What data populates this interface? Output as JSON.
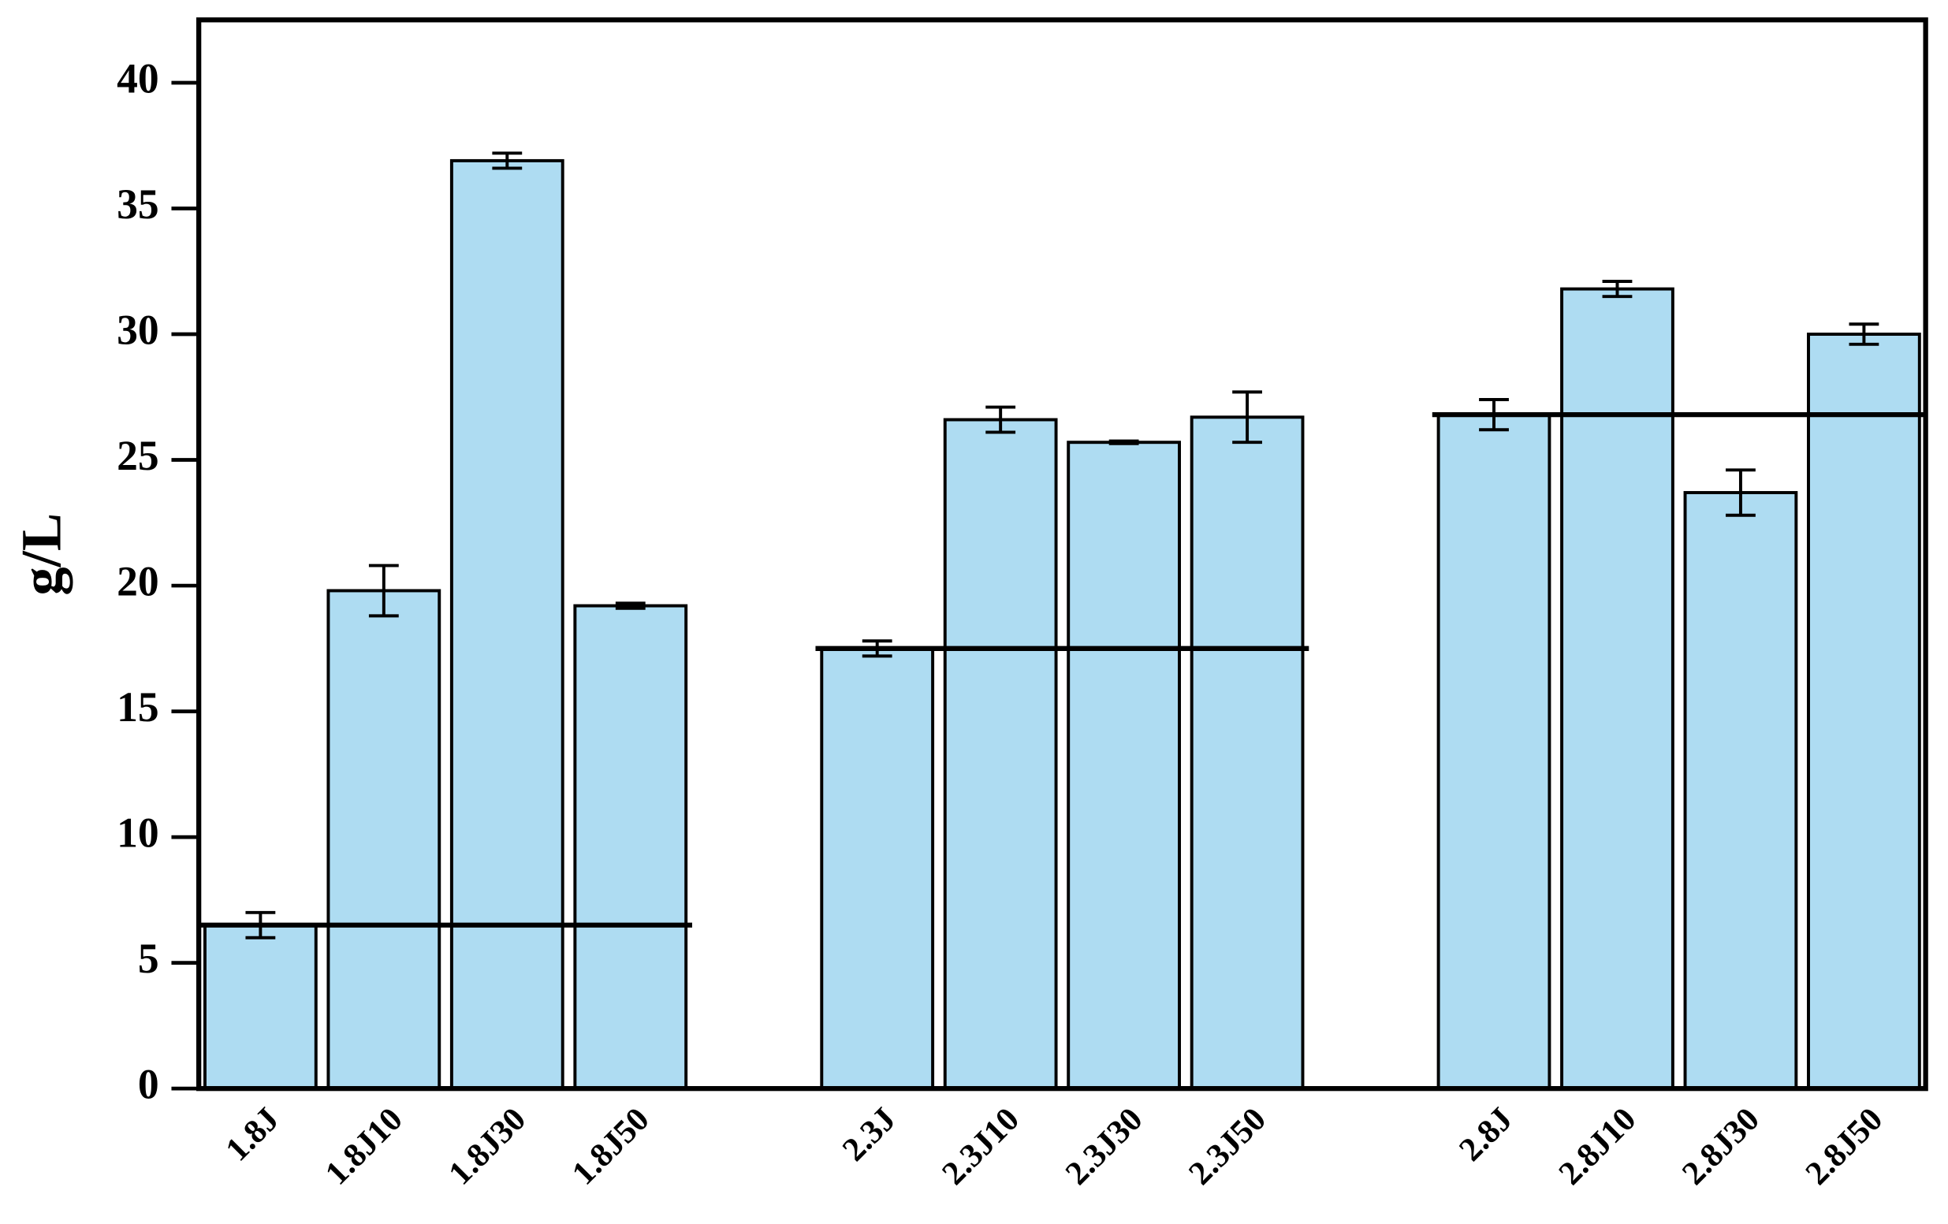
{
  "chart_data": {
    "type": "bar",
    "y_label": "g/L",
    "categories": [
      "1.8J",
      "1.8J10",
      "1.8J30",
      "1.8J50",
      "2.3J",
      "2.3J10",
      "2.3J30",
      "2.3J50",
      "2.8J",
      "2.8J10",
      "2.8J30",
      "2.8J50"
    ],
    "values": [
      6.5,
      19.8,
      36.9,
      19.2,
      17.5,
      26.6,
      25.7,
      26.7,
      26.8,
      31.8,
      23.7,
      30.0
    ],
    "errors": [
      0.5,
      1.0,
      0.3,
      0.1,
      0.3,
      0.5,
      0.05,
      1.0,
      0.6,
      0.3,
      0.9,
      0.4
    ],
    "reference_lines": [
      6.5,
      17.5,
      26.8
    ],
    "color": "#aedcf2",
    "ylim": [
      0,
      42.5
    ],
    "yticks": [
      0,
      5,
      10,
      15,
      20,
      25,
      30,
      35,
      40
    ]
  }
}
